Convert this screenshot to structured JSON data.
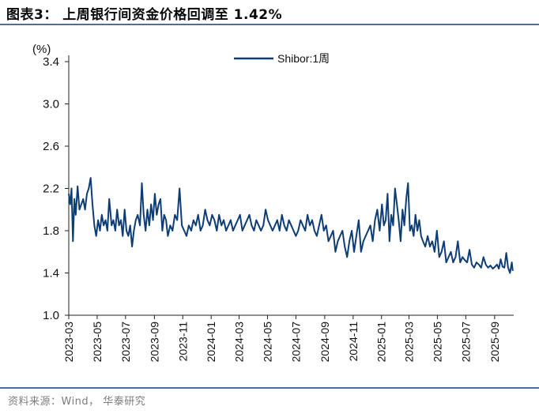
{
  "header": {
    "title": "图表3： 上周银行间资金价格回调至 1.42%"
  },
  "footer": {
    "source": "资料来源：Wind， 华泰研究"
  },
  "chart_data": {
    "type": "line",
    "title": "",
    "ylabel": "(%)",
    "xlabel": "",
    "ylim": [
      1.0,
      3.4
    ],
    "yticks": [
      1.0,
      1.4,
      1.8,
      2.2,
      2.6,
      3.0,
      3.4
    ],
    "ytick_labels": [
      "1.0",
      "1.4",
      "1.8",
      "2.2",
      "2.6",
      "3.0",
      "3.4"
    ],
    "xlim": [
      "2023-03-01",
      "2025-10-12"
    ],
    "xtick_labels": [
      "2023-03",
      "2023-05",
      "2023-07",
      "2023-09",
      "2023-11",
      "2024-01",
      "2024-03",
      "2024-05",
      "2024-07",
      "2024-09",
      "2024-11",
      "2025-01",
      "2025-03",
      "2025-05",
      "2025-07",
      "2025-09"
    ],
    "legend_position": "top-center",
    "grid": false,
    "series": [
      {
        "name": "Shibor:1周",
        "color": "#0e3d75",
        "x": [
          "2023-03-01",
          "2023-03-04",
          "2023-03-07",
          "2023-03-10",
          "2023-03-13",
          "2023-03-16",
          "2023-03-20",
          "2023-03-24",
          "2023-03-28",
          "2023-04-01",
          "2023-04-05",
          "2023-04-09",
          "2023-04-13",
          "2023-04-17",
          "2023-04-21",
          "2023-04-25",
          "2023-04-29",
          "2023-05-03",
          "2023-05-07",
          "2023-05-11",
          "2023-05-15",
          "2023-05-19",
          "2023-05-23",
          "2023-05-27",
          "2023-06-01",
          "2023-06-05",
          "2023-06-09",
          "2023-06-13",
          "2023-06-17",
          "2023-06-21",
          "2023-06-25",
          "2023-06-29",
          "2023-07-03",
          "2023-07-07",
          "2023-07-11",
          "2023-07-15",
          "2023-07-19",
          "2023-07-23",
          "2023-07-27",
          "2023-08-01",
          "2023-08-05",
          "2023-08-09",
          "2023-08-13",
          "2023-08-17",
          "2023-08-21",
          "2023-08-25",
          "2023-08-29",
          "2023-09-02",
          "2023-09-06",
          "2023-09-10",
          "2023-09-14",
          "2023-09-18",
          "2023-09-22",
          "2023-09-26",
          "2023-09-30",
          "2023-10-05",
          "2023-10-10",
          "2023-10-15",
          "2023-10-20",
          "2023-10-25",
          "2023-10-30",
          "2023-11-04",
          "2023-11-09",
          "2023-11-14",
          "2023-11-19",
          "2023-11-24",
          "2023-11-29",
          "2023-12-04",
          "2023-12-09",
          "2023-12-14",
          "2023-12-19",
          "2023-12-24",
          "2023-12-29",
          "2024-01-03",
          "2024-01-08",
          "2024-01-13",
          "2024-01-18",
          "2024-01-23",
          "2024-01-28",
          "2024-02-02",
          "2024-02-07",
          "2024-02-12",
          "2024-02-17",
          "2024-02-22",
          "2024-02-27",
          "2024-03-03",
          "2024-03-08",
          "2024-03-13",
          "2024-03-18",
          "2024-03-23",
          "2024-03-28",
          "2024-04-02",
          "2024-04-07",
          "2024-04-12",
          "2024-04-17",
          "2024-04-22",
          "2024-04-27",
          "2024-05-02",
          "2024-05-07",
          "2024-05-12",
          "2024-05-17",
          "2024-05-22",
          "2024-05-27",
          "2024-06-01",
          "2024-06-06",
          "2024-06-11",
          "2024-06-16",
          "2024-06-21",
          "2024-06-26",
          "2024-07-01",
          "2024-07-06",
          "2024-07-11",
          "2024-07-16",
          "2024-07-21",
          "2024-07-26",
          "2024-07-31",
          "2024-08-05",
          "2024-08-10",
          "2024-08-15",
          "2024-08-20",
          "2024-08-25",
          "2024-08-30",
          "2024-09-04",
          "2024-09-09",
          "2024-09-14",
          "2024-09-19",
          "2024-09-24",
          "2024-09-29",
          "2024-10-04",
          "2024-10-09",
          "2024-10-14",
          "2024-10-19",
          "2024-10-24",
          "2024-10-29",
          "2024-11-03",
          "2024-11-08",
          "2024-11-13",
          "2024-11-18",
          "2024-11-23",
          "2024-11-28",
          "2024-12-03",
          "2024-12-08",
          "2024-12-13",
          "2024-12-18",
          "2024-12-23",
          "2024-12-28",
          "2025-01-02",
          "2025-01-06",
          "2025-01-10",
          "2025-01-14",
          "2025-01-18",
          "2025-01-22",
          "2025-01-26",
          "2025-01-30",
          "2025-02-03",
          "2025-02-07",
          "2025-02-11",
          "2025-02-15",
          "2025-02-19",
          "2025-02-23",
          "2025-02-27",
          "2025-03-03",
          "2025-03-07",
          "2025-03-11",
          "2025-03-15",
          "2025-03-19",
          "2025-03-23",
          "2025-03-27",
          "2025-03-31",
          "2025-04-05",
          "2025-04-10",
          "2025-04-15",
          "2025-04-20",
          "2025-04-25",
          "2025-04-30",
          "2025-05-05",
          "2025-05-10",
          "2025-05-15",
          "2025-05-20",
          "2025-05-25",
          "2025-05-30",
          "2025-06-04",
          "2025-06-09",
          "2025-06-14",
          "2025-06-19",
          "2025-06-24",
          "2025-06-29",
          "2025-07-04",
          "2025-07-09",
          "2025-07-14",
          "2025-07-19",
          "2025-07-24",
          "2025-07-29",
          "2025-08-03",
          "2025-08-08",
          "2025-08-13",
          "2025-08-18",
          "2025-08-23",
          "2025-08-28",
          "2025-09-02",
          "2025-09-06",
          "2025-09-10",
          "2025-09-14",
          "2025-09-18",
          "2025-09-22",
          "2025-09-26",
          "2025-09-30",
          "2025-10-04",
          "2025-10-08",
          "2025-10-10"
        ],
        "values": [
          2.15,
          2.05,
          2.2,
          1.7,
          2.1,
          1.95,
          2.22,
          2.0,
          2.05,
          2.1,
          2.0,
          2.15,
          2.2,
          2.3,
          2.05,
          1.85,
          1.75,
          1.9,
          1.8,
          1.95,
          1.85,
          1.9,
          1.8,
          2.1,
          1.85,
          1.9,
          1.8,
          2.0,
          1.85,
          1.9,
          1.75,
          2.0,
          1.8,
          1.75,
          1.85,
          1.65,
          1.8,
          1.9,
          1.95,
          1.85,
          2.25,
          1.95,
          1.8,
          2.0,
          1.85,
          2.05,
          1.9,
          2.15,
          1.95,
          2.05,
          2.1,
          1.8,
          1.95,
          1.9,
          1.75,
          1.85,
          1.8,
          1.95,
          1.9,
          2.2,
          1.85,
          1.8,
          1.75,
          1.85,
          1.8,
          1.9,
          1.85,
          1.95,
          1.8,
          1.85,
          2.0,
          1.9,
          1.85,
          1.95,
          1.9,
          1.8,
          1.95,
          1.85,
          1.9,
          1.8,
          1.85,
          1.9,
          1.8,
          1.85,
          1.9,
          1.95,
          1.8,
          1.85,
          1.9,
          1.95,
          1.85,
          1.8,
          1.9,
          1.85,
          1.8,
          1.85,
          2.0,
          1.9,
          1.85,
          1.8,
          1.85,
          1.9,
          1.8,
          1.95,
          1.85,
          1.8,
          1.9,
          1.85,
          1.8,
          1.75,
          1.8,
          1.9,
          1.85,
          1.8,
          1.95,
          1.85,
          1.9,
          1.8,
          1.75,
          1.85,
          1.95,
          1.8,
          1.85,
          1.7,
          1.75,
          1.8,
          1.6,
          1.7,
          1.75,
          1.8,
          1.65,
          1.55,
          1.7,
          1.8,
          1.6,
          1.75,
          1.9,
          1.6,
          1.7,
          1.75,
          1.8,
          1.85,
          1.7,
          1.9,
          2.0,
          1.8,
          2.05,
          1.85,
          1.9,
          2.15,
          1.7,
          1.95,
          1.85,
          2.2,
          2.05,
          1.9,
          1.7,
          2.0,
          1.85,
          2.1,
          2.25,
          1.8,
          1.85,
          1.75,
          1.95,
          1.8,
          1.9,
          1.75,
          1.7,
          1.65,
          1.75,
          1.65,
          1.7,
          1.6,
          1.8,
          1.55,
          1.6,
          1.7,
          1.5,
          1.55,
          1.6,
          1.5,
          1.55,
          1.7,
          1.5,
          1.55,
          1.52,
          1.5,
          1.62,
          1.48,
          1.45,
          1.5,
          1.48,
          1.45,
          1.55,
          1.48,
          1.45,
          1.47,
          1.44,
          1.46,
          1.48,
          1.44,
          1.53,
          1.46,
          1.45,
          1.59,
          1.45,
          1.4,
          1.5,
          1.42
        ]
      }
    ]
  }
}
